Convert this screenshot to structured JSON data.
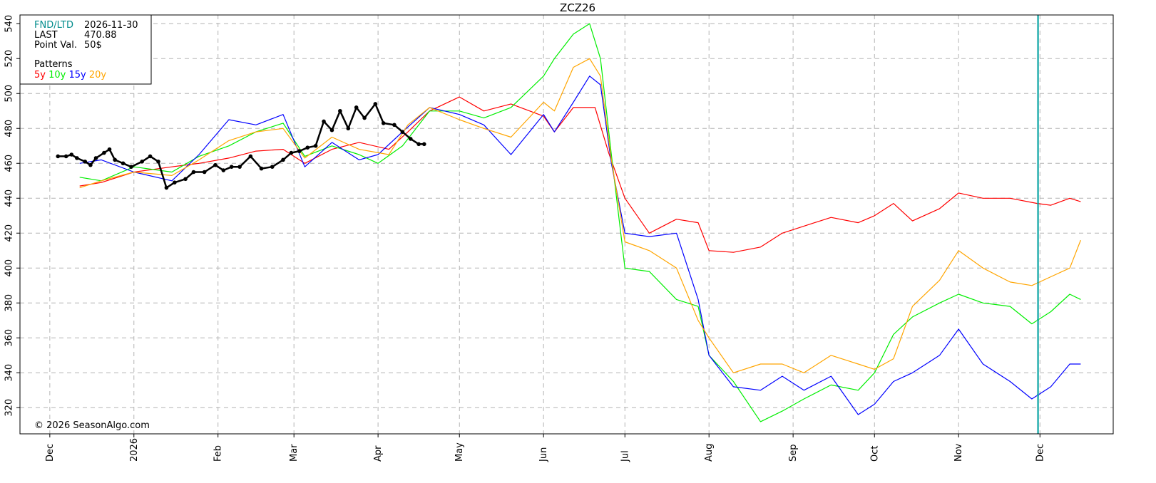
{
  "chart_data": {
    "type": "line",
    "title": "ZCZ26",
    "ylim": [
      305,
      545
    ],
    "yticks": [
      320,
      340,
      360,
      380,
      400,
      420,
      440,
      460,
      480,
      500,
      520,
      540
    ],
    "grid": true,
    "xticks": [
      {
        "label": "Dec",
        "date": "2025-12-01"
      },
      {
        "label": "2026",
        "date": "2026-01-01"
      },
      {
        "label": "Feb",
        "date": "2026-02-01"
      },
      {
        "label": "Mar",
        "date": "2026-03-01"
      },
      {
        "label": "Apr",
        "date": "2026-04-01"
      },
      {
        "label": "May",
        "date": "2026-05-01"
      },
      {
        "label": "Jun",
        "date": "2026-06-01"
      },
      {
        "label": "Jul",
        "date": "2026-07-01"
      },
      {
        "label": "Aug",
        "date": "2026-08-01"
      },
      {
        "label": "Sep",
        "date": "2026-09-01"
      },
      {
        "label": "Oct",
        "date": "2026-10-01"
      },
      {
        "label": "Nov",
        "date": "2026-11-01"
      },
      {
        "label": "Dec",
        "date": "2026-12-01"
      }
    ],
    "xlim": [
      "2025-11-20",
      "2026-12-28"
    ],
    "marker_date": "2026-11-30",
    "info": {
      "fnd_label": "FND/LTD",
      "fnd_value": "2026-11-30",
      "last_label": "LAST",
      "last_value": "470.88",
      "pv_label": "Point Val.",
      "pv_value": "50$",
      "patterns_label": "Patterns"
    },
    "copyright": "© 2026 SeasonAlgo.com",
    "series": [
      {
        "name": "5y",
        "color": "#ff0000",
        "points": [
          [
            "2025-12-12",
            447
          ],
          [
            "2025-12-20",
            449
          ],
          [
            "2026-01-01",
            455
          ],
          [
            "2026-01-15",
            458
          ],
          [
            "2026-01-25",
            460
          ],
          [
            "2026-02-05",
            463
          ],
          [
            "2026-02-15",
            467
          ],
          [
            "2026-02-25",
            468
          ],
          [
            "2026-03-05",
            460
          ],
          [
            "2026-03-15",
            468
          ],
          [
            "2026-03-25",
            472
          ],
          [
            "2026-04-05",
            468
          ],
          [
            "2026-04-12",
            478
          ],
          [
            "2026-04-20",
            490
          ],
          [
            "2026-05-01",
            498
          ],
          [
            "2026-05-10",
            490
          ],
          [
            "2026-05-20",
            494
          ],
          [
            "2026-06-01",
            487
          ],
          [
            "2026-06-05",
            478
          ],
          [
            "2026-06-12",
            492
          ],
          [
            "2026-06-20",
            492
          ],
          [
            "2026-06-25",
            466
          ],
          [
            "2026-07-01",
            440
          ],
          [
            "2026-07-10",
            420
          ],
          [
            "2026-07-20",
            428
          ],
          [
            "2026-07-28",
            426
          ],
          [
            "2026-08-01",
            410
          ],
          [
            "2026-08-10",
            409
          ],
          [
            "2026-08-20",
            412
          ],
          [
            "2026-08-28",
            420
          ],
          [
            "2026-09-05",
            424
          ],
          [
            "2026-09-15",
            429
          ],
          [
            "2026-09-25",
            426
          ],
          [
            "2026-10-01",
            430
          ],
          [
            "2026-10-08",
            437
          ],
          [
            "2026-10-15",
            427
          ],
          [
            "2026-10-25",
            434
          ],
          [
            "2026-11-01",
            443
          ],
          [
            "2026-11-10",
            440
          ],
          [
            "2026-11-20",
            440
          ],
          [
            "2026-11-30",
            437
          ],
          [
            "2026-12-05",
            436
          ],
          [
            "2026-12-12",
            440
          ],
          [
            "2026-12-16",
            438
          ]
        ]
      },
      {
        "name": "10y",
        "color": "#00ee00",
        "points": [
          [
            "2025-12-12",
            452
          ],
          [
            "2025-12-20",
            450
          ],
          [
            "2026-01-01",
            458
          ],
          [
            "2026-01-15",
            455
          ],
          [
            "2026-01-25",
            464
          ],
          [
            "2026-02-05",
            470
          ],
          [
            "2026-02-15",
            478
          ],
          [
            "2026-02-25",
            483
          ],
          [
            "2026-03-05",
            464
          ],
          [
            "2026-03-15",
            470
          ],
          [
            "2026-03-25",
            465
          ],
          [
            "2026-04-01",
            460
          ],
          [
            "2026-04-10",
            470
          ],
          [
            "2026-04-20",
            490
          ],
          [
            "2026-05-01",
            490
          ],
          [
            "2026-05-10",
            486
          ],
          [
            "2026-05-20",
            492
          ],
          [
            "2026-06-01",
            510
          ],
          [
            "2026-06-05",
            520
          ],
          [
            "2026-06-12",
            534
          ],
          [
            "2026-06-18",
            540
          ],
          [
            "2026-06-22",
            520
          ],
          [
            "2026-06-26",
            465
          ],
          [
            "2026-07-01",
            400
          ],
          [
            "2026-07-10",
            398
          ],
          [
            "2026-07-20",
            382
          ],
          [
            "2026-07-28",
            378
          ],
          [
            "2026-08-01",
            350
          ],
          [
            "2026-08-10",
            335
          ],
          [
            "2026-08-20",
            312
          ],
          [
            "2026-08-28",
            318
          ],
          [
            "2026-09-05",
            325
          ],
          [
            "2026-09-15",
            333
          ],
          [
            "2026-09-25",
            330
          ],
          [
            "2026-10-01",
            340
          ],
          [
            "2026-10-08",
            362
          ],
          [
            "2026-10-15",
            372
          ],
          [
            "2026-10-25",
            380
          ],
          [
            "2026-11-01",
            385
          ],
          [
            "2026-11-10",
            380
          ],
          [
            "2026-11-20",
            378
          ],
          [
            "2026-11-28",
            368
          ],
          [
            "2026-12-05",
            375
          ],
          [
            "2026-12-12",
            385
          ],
          [
            "2026-12-16",
            382
          ]
        ]
      },
      {
        "name": "15y",
        "color": "#0000ff",
        "points": [
          [
            "2025-12-12",
            460
          ],
          [
            "2025-12-20",
            462
          ],
          [
            "2026-01-01",
            455
          ],
          [
            "2026-01-15",
            450
          ],
          [
            "2026-01-25",
            465
          ],
          [
            "2026-02-05",
            485
          ],
          [
            "2026-02-15",
            482
          ],
          [
            "2026-02-25",
            488
          ],
          [
            "2026-03-05",
            458
          ],
          [
            "2026-03-15",
            472
          ],
          [
            "2026-03-25",
            462
          ],
          [
            "2026-04-01",
            465
          ],
          [
            "2026-04-10",
            478
          ],
          [
            "2026-04-20",
            492
          ],
          [
            "2026-05-01",
            488
          ],
          [
            "2026-05-10",
            482
          ],
          [
            "2026-05-20",
            465
          ],
          [
            "2026-06-01",
            488
          ],
          [
            "2026-06-05",
            478
          ],
          [
            "2026-06-12",
            495
          ],
          [
            "2026-06-18",
            510
          ],
          [
            "2026-06-22",
            505
          ],
          [
            "2026-06-26",
            460
          ],
          [
            "2026-07-01",
            420
          ],
          [
            "2026-07-10",
            418
          ],
          [
            "2026-07-20",
            420
          ],
          [
            "2026-07-28",
            382
          ],
          [
            "2026-08-01",
            350
          ],
          [
            "2026-08-10",
            332
          ],
          [
            "2026-08-20",
            330
          ],
          [
            "2026-08-28",
            338
          ],
          [
            "2026-09-05",
            330
          ],
          [
            "2026-09-15",
            338
          ],
          [
            "2026-09-25",
            316
          ],
          [
            "2026-10-01",
            322
          ],
          [
            "2026-10-08",
            335
          ],
          [
            "2026-10-15",
            340
          ],
          [
            "2026-10-25",
            350
          ],
          [
            "2026-11-01",
            365
          ],
          [
            "2026-11-10",
            345
          ],
          [
            "2026-11-20",
            335
          ],
          [
            "2026-11-28",
            325
          ],
          [
            "2026-12-05",
            332
          ],
          [
            "2026-12-12",
            345
          ],
          [
            "2026-12-16",
            345
          ]
        ]
      },
      {
        "name": "20y",
        "color": "#ffa500",
        "points": [
          [
            "2025-12-12",
            446
          ],
          [
            "2025-12-20",
            450
          ],
          [
            "2026-01-01",
            455
          ],
          [
            "2026-01-15",
            453
          ],
          [
            "2026-01-25",
            462
          ],
          [
            "2026-02-05",
            473
          ],
          [
            "2026-02-15",
            478
          ],
          [
            "2026-02-25",
            480
          ],
          [
            "2026-03-05",
            463
          ],
          [
            "2026-03-15",
            475
          ],
          [
            "2026-03-25",
            468
          ],
          [
            "2026-04-05",
            465
          ],
          [
            "2026-04-12",
            482
          ],
          [
            "2026-04-20",
            492
          ],
          [
            "2026-05-01",
            485
          ],
          [
            "2026-05-10",
            480
          ],
          [
            "2026-05-20",
            475
          ],
          [
            "2026-06-01",
            495
          ],
          [
            "2026-06-05",
            490
          ],
          [
            "2026-06-12",
            515
          ],
          [
            "2026-06-18",
            520
          ],
          [
            "2026-06-22",
            510
          ],
          [
            "2026-06-26",
            462
          ],
          [
            "2026-07-01",
            415
          ],
          [
            "2026-07-10",
            410
          ],
          [
            "2026-07-20",
            400
          ],
          [
            "2026-07-28",
            370
          ],
          [
            "2026-08-01",
            360
          ],
          [
            "2026-08-10",
            340
          ],
          [
            "2026-08-20",
            345
          ],
          [
            "2026-08-28",
            345
          ],
          [
            "2026-09-05",
            340
          ],
          [
            "2026-09-15",
            350
          ],
          [
            "2026-09-25",
            345
          ],
          [
            "2026-10-01",
            342
          ],
          [
            "2026-10-08",
            348
          ],
          [
            "2026-10-15",
            378
          ],
          [
            "2026-10-25",
            393
          ],
          [
            "2026-11-01",
            410
          ],
          [
            "2026-11-10",
            400
          ],
          [
            "2026-11-20",
            392
          ],
          [
            "2026-11-28",
            390
          ],
          [
            "2026-12-05",
            395
          ],
          [
            "2026-12-12",
            400
          ],
          [
            "2026-12-16",
            416
          ]
        ]
      },
      {
        "name": "",
        "color": "#000000",
        "markers": true,
        "points": [
          [
            "2025-12-04",
            464
          ],
          [
            "2025-12-07",
            464
          ],
          [
            "2025-12-09",
            465
          ],
          [
            "2025-12-11",
            463
          ],
          [
            "2025-12-14",
            461
          ],
          [
            "2025-12-16",
            459
          ],
          [
            "2025-12-18",
            463
          ],
          [
            "2025-12-21",
            466
          ],
          [
            "2025-12-23",
            468
          ],
          [
            "2025-12-25",
            462
          ],
          [
            "2025-12-28",
            460
          ],
          [
            "2025-12-31",
            458
          ],
          [
            "2026-01-04",
            461
          ],
          [
            "2026-01-07",
            464
          ],
          [
            "2026-01-10",
            461
          ],
          [
            "2026-01-13",
            446
          ],
          [
            "2026-01-16",
            449
          ],
          [
            "2026-01-20",
            451
          ],
          [
            "2026-01-23",
            455
          ],
          [
            "2026-01-27",
            455
          ],
          [
            "2026-01-31",
            459
          ],
          [
            "2026-02-03",
            456
          ],
          [
            "2026-02-06",
            458
          ],
          [
            "2026-02-09",
            458
          ],
          [
            "2026-02-13",
            464
          ],
          [
            "2026-02-17",
            457
          ],
          [
            "2026-02-21",
            458
          ],
          [
            "2026-02-25",
            462
          ],
          [
            "2026-02-28",
            466
          ],
          [
            "2026-03-03",
            467
          ],
          [
            "2026-03-06",
            469
          ],
          [
            "2026-03-09",
            470
          ],
          [
            "2026-03-12",
            484
          ],
          [
            "2026-03-15",
            479
          ],
          [
            "2026-03-18",
            490
          ],
          [
            "2026-03-21",
            480
          ],
          [
            "2026-03-24",
            492
          ],
          [
            "2026-03-27",
            486
          ],
          [
            "2026-03-31",
            494
          ],
          [
            "2026-04-03",
            483
          ],
          [
            "2026-04-07",
            482
          ],
          [
            "2026-04-10",
            478
          ],
          [
            "2026-04-13",
            474
          ],
          [
            "2026-04-16",
            471
          ],
          [
            "2026-04-18",
            471
          ]
        ]
      }
    ]
  }
}
